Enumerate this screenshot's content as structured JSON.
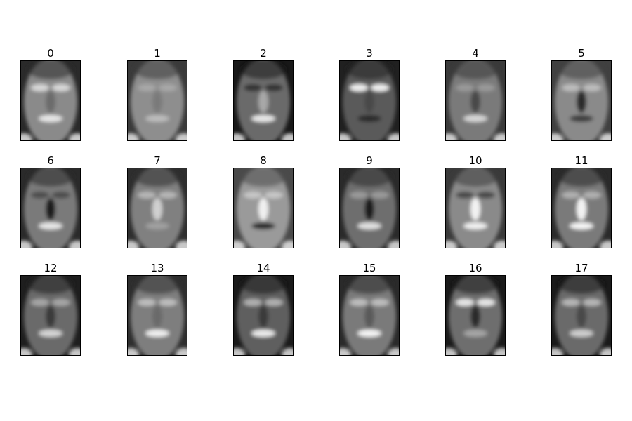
{
  "panels": [
    {
      "title": "0"
    },
    {
      "title": "1"
    },
    {
      "title": "2"
    },
    {
      "title": "3"
    },
    {
      "title": "4"
    },
    {
      "title": "5"
    },
    {
      "title": "6"
    },
    {
      "title": "7"
    },
    {
      "title": "8"
    },
    {
      "title": "9"
    },
    {
      "title": "10"
    },
    {
      "title": "11"
    },
    {
      "title": "12"
    },
    {
      "title": "13"
    },
    {
      "title": "14"
    },
    {
      "title": "15"
    },
    {
      "title": "16"
    },
    {
      "title": "17"
    }
  ]
}
